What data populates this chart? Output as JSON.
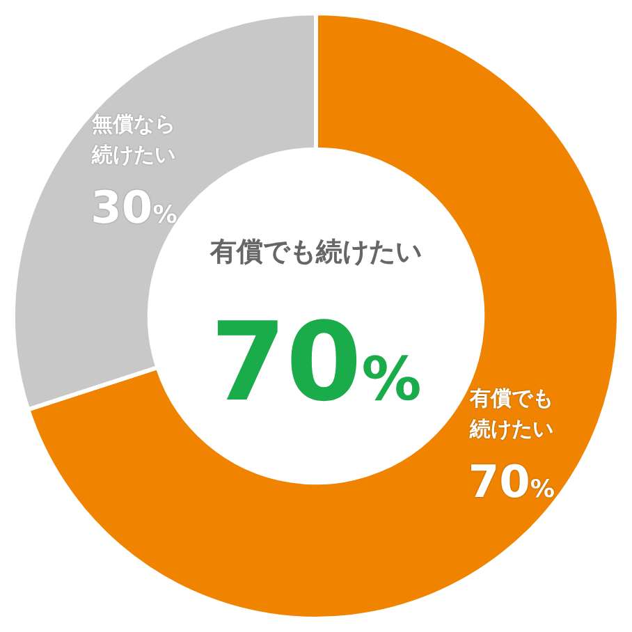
{
  "chart_data": {
    "type": "donut",
    "categories": [
      "有償でも続けたい",
      "無償なら続けたい"
    ],
    "values": [
      70,
      30
    ],
    "colors": [
      "#f08300",
      "#c8c8c8"
    ],
    "value_labels": [
      "70%",
      "30%"
    ],
    "annotations": [
      "有償でも続けたい",
      "70%"
    ]
  }
}
